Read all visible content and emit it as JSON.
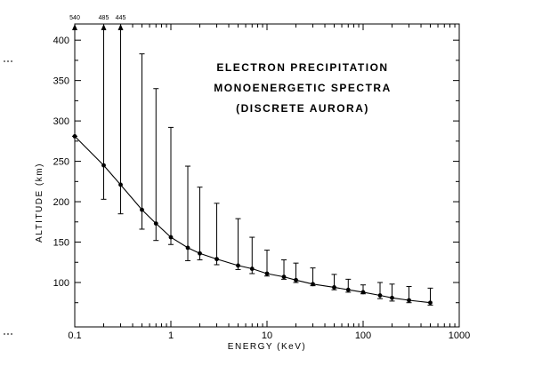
{
  "chart_data": {
    "type": "line",
    "title_lines": [
      "ELECTRON PRECIPITATION",
      "MONOENERGETIC SPECTRA",
      "(DISCRETE AURORA)"
    ],
    "xlabel": "ENERGY (KeV)",
    "ylabel": "ALTITUDE (km)",
    "x_scale": "log",
    "xlim": [
      0.1,
      1000
    ],
    "ylim": [
      45,
      420
    ],
    "x_ticks": [
      {
        "value": 0.1,
        "label": "0.1"
      },
      {
        "value": 1,
        "label": "1"
      },
      {
        "value": 10,
        "label": "10"
      },
      {
        "value": 100,
        "label": "100"
      },
      {
        "value": 1000,
        "label": "1000"
      }
    ],
    "y_ticks": [
      {
        "value": 100,
        "label": "100"
      },
      {
        "value": 150,
        "label": "150"
      },
      {
        "value": 200,
        "label": "200"
      },
      {
        "value": 250,
        "label": "250"
      },
      {
        "value": 300,
        "label": "300"
      },
      {
        "value": 350,
        "label": "350"
      },
      {
        "value": 400,
        "label": "400"
      }
    ],
    "grid": false,
    "points": [
      {
        "x": 0.1,
        "y": 281,
        "lo": 281,
        "hi": 420,
        "arrow_label": "540"
      },
      {
        "x": 0.2,
        "y": 245,
        "lo": 203,
        "hi": 420,
        "arrow_label": "485"
      },
      {
        "x": 0.3,
        "y": 221,
        "lo": 185,
        "hi": 420,
        "arrow_label": "445"
      },
      {
        "x": 0.5,
        "y": 190,
        "lo": 166,
        "hi": 383
      },
      {
        "x": 0.7,
        "y": 173,
        "lo": 152,
        "hi": 340
      },
      {
        "x": 1.0,
        "y": 156,
        "lo": 147,
        "hi": 292
      },
      {
        "x": 1.5,
        "y": 143,
        "lo": 127,
        "hi": 244
      },
      {
        "x": 2.0,
        "y": 136,
        "lo": 128,
        "hi": 218
      },
      {
        "x": 3.0,
        "y": 129,
        "lo": 122,
        "hi": 198
      },
      {
        "x": 5.0,
        "y": 121,
        "lo": 116,
        "hi": 179
      },
      {
        "x": 7.0,
        "y": 117,
        "lo": 111,
        "hi": 156
      },
      {
        "x": 10,
        "y": 111,
        "lo": 108,
        "hi": 140
      },
      {
        "x": 15,
        "y": 107,
        "lo": 104,
        "hi": 128
      },
      {
        "x": 20,
        "y": 103,
        "lo": 100,
        "hi": 124
      },
      {
        "x": 30,
        "y": 98,
        "lo": 96,
        "hi": 118
      },
      {
        "x": 50,
        "y": 94,
        "lo": 91,
        "hi": 110
      },
      {
        "x": 70,
        "y": 91,
        "lo": 88,
        "hi": 104
      },
      {
        "x": 100,
        "y": 88,
        "lo": 86,
        "hi": 97
      },
      {
        "x": 150,
        "y": 84,
        "lo": 80,
        "hi": 100
      },
      {
        "x": 200,
        "y": 81,
        "lo": 77,
        "hi": 98
      },
      {
        "x": 300,
        "y": 78,
        "lo": 75,
        "hi": 95
      },
      {
        "x": 500,
        "y": 75,
        "lo": 72,
        "hi": 93
      }
    ]
  }
}
